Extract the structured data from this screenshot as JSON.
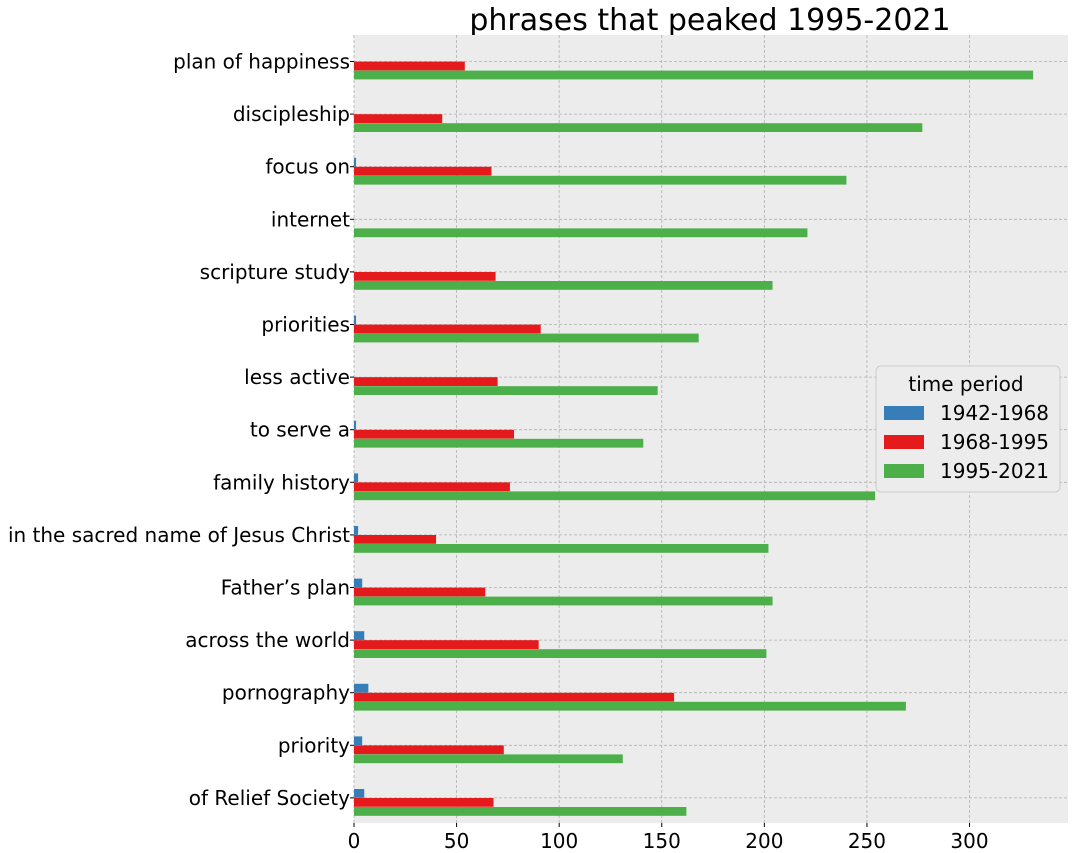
{
  "chart_data": {
    "type": "bar",
    "orientation": "horizontal",
    "title": "phrases that peaked 1995-2021",
    "xlabel": "",
    "ylabel": "",
    "xlim": [
      0,
      348
    ],
    "xticks": [
      0,
      50,
      100,
      150,
      200,
      250,
      300
    ],
    "grid": true,
    "legend": {
      "title": "time period",
      "placement": "center-right"
    },
    "categories": [
      "plan of happiness",
      "discipleship",
      "focus on",
      "internet",
      "scripture study",
      "priorities",
      "less active",
      "to serve a",
      "family history",
      "in the sacred name of Jesus Christ",
      "Father’s plan",
      "across the world",
      "pornography",
      "priority",
      "of Relief Society"
    ],
    "series": [
      {
        "name": "1942-1968",
        "color": "#377eb8",
        "values": [
          0,
          0,
          1,
          0,
          0,
          1,
          0,
          1,
          2,
          2,
          4,
          5,
          7,
          4,
          5
        ]
      },
      {
        "name": "1968-1995",
        "color": "#e41a1c",
        "values": [
          54,
          43,
          67,
          0,
          69,
          91,
          70,
          78,
          76,
          40,
          64,
          90,
          156,
          73,
          68
        ]
      },
      {
        "name": "1995-2021",
        "color": "#4daf4a",
        "values": [
          331,
          277,
          240,
          221,
          204,
          168,
          148,
          141,
          254,
          202,
          204,
          201,
          269,
          131,
          162
        ]
      }
    ]
  }
}
